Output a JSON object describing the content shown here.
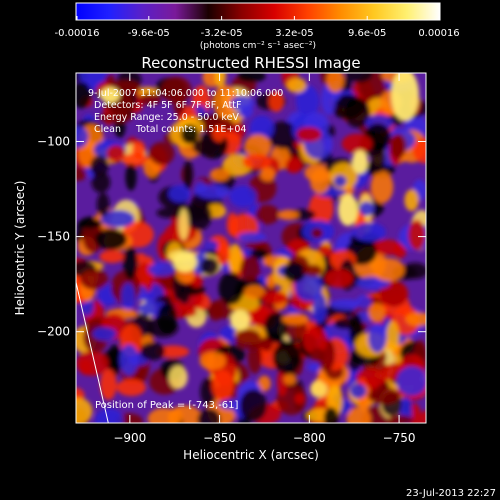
{
  "colorbar": {
    "stops": [
      "#0000ff",
      "#2020ff",
      "#5a20c8",
      "#7a1a9a",
      "#1a0000",
      "#8a0000",
      "#d80000",
      "#ff4000",
      "#ff8c00",
      "#ffc820",
      "#fff070",
      "#ffffff"
    ],
    "tick_labels": [
      "-0.00016",
      "-9.6e-05",
      "-3.2e-05",
      "3.2e-05",
      "9.6e-05",
      "0.00016"
    ],
    "tick_values": [
      -0.00016,
      -9.6e-05,
      -3.2e-05,
      3.2e-05,
      9.6e-05,
      0.00016
    ],
    "range": [
      -0.00016,
      0.00016
    ],
    "units": "(photons cm⁻² s⁻¹ asec⁻²)"
  },
  "chart_data": {
    "type": "heatmap",
    "title": "Reconstructed RHESSI Image",
    "xlabel": "Heliocentric X (arcsec)",
    "ylabel": "Heliocentric Y (arcsec)",
    "xlim": [
      -930,
      -735
    ],
    "ylim": [
      -248,
      -64
    ],
    "x_ticks": [
      -900,
      -850,
      -800,
      -750
    ],
    "y_ticks": [
      -200,
      -150,
      -100
    ],
    "x_tick_labels": [
      "−900",
      "−850",
      "−800",
      "−750"
    ],
    "y_tick_labels": [
      "−200",
      "−150",
      "−100"
    ],
    "annotations": [
      "9-Jul-2007 11:04:06.000 to 11:10:06.000",
      "Detectors: 4F 5F 6F 7F 8F, AttF",
      "Energy Range: 25.0 - 50.0 keV",
      "Clean     Total counts: 1.51E+04"
    ],
    "peak_label": "Position of Peak = [-743,-61]",
    "peak": [
      -743,
      -61
    ],
    "limb_line": [
      [
        -930,
        -174
      ],
      [
        -912,
        -248
      ]
    ]
  },
  "footer": {
    "timestamp": "23-Jul-2013 22:27"
  }
}
